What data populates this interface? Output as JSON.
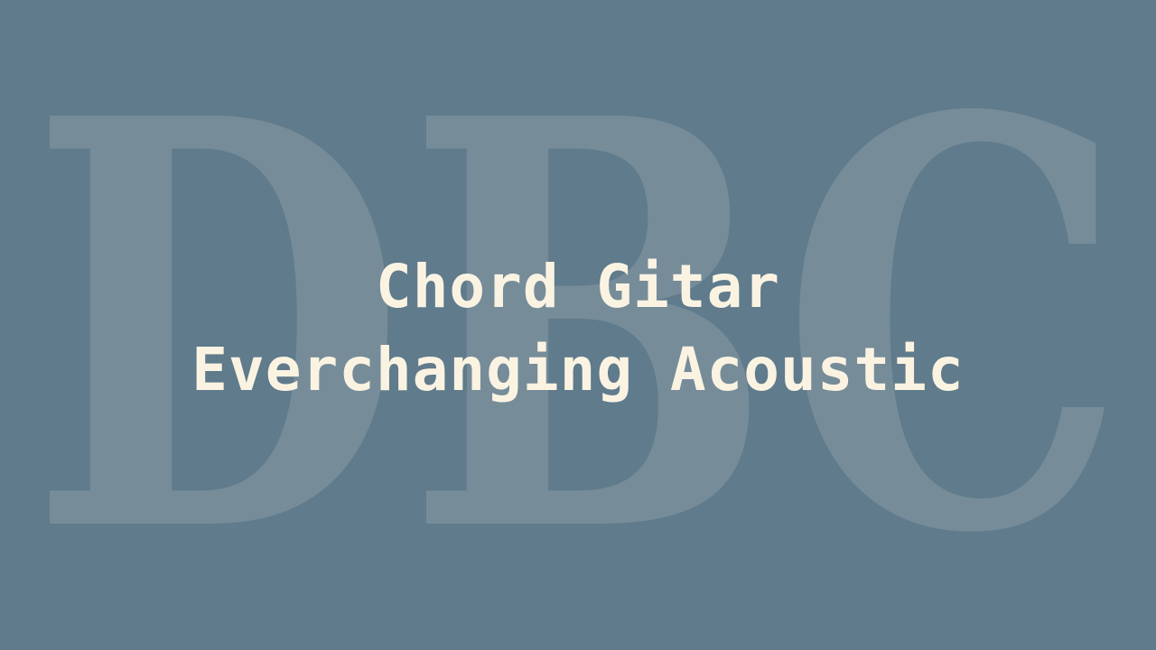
{
  "watermark": {
    "text": "DBC"
  },
  "title": {
    "line1": "Chord Gitar",
    "line2": "Everchanging Acoustic"
  },
  "colors": {
    "background": "#5f7b8c",
    "watermark": "#768c99",
    "title_text": "#fbf3e2"
  }
}
